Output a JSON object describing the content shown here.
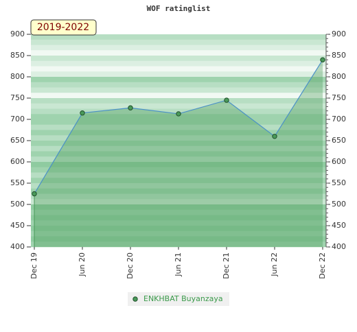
{
  "chart_data": {
    "type": "line",
    "title": "WOF ratinglist",
    "badge": "2019-2022",
    "categories": [
      "Dec 19",
      "Jun 20",
      "Dec 20",
      "Jun 21",
      "Dec 21",
      "Jun 22",
      "Dec 22"
    ],
    "series": [
      {
        "name": "ENKHBAT Buyanzaya",
        "color": "#4a9a5a",
        "values": [
          525,
          715,
          727,
          713,
          745,
          660,
          840
        ]
      }
    ],
    "ylim": [
      400,
      900
    ],
    "yticks": [
      400,
      450,
      500,
      550,
      600,
      650,
      700,
      750,
      800,
      850,
      900
    ],
    "y2lim": [
      400,
      900
    ],
    "y2ticks": [
      400,
      450,
      500,
      550,
      600,
      650,
      700,
      750,
      800,
      850,
      900
    ]
  }
}
